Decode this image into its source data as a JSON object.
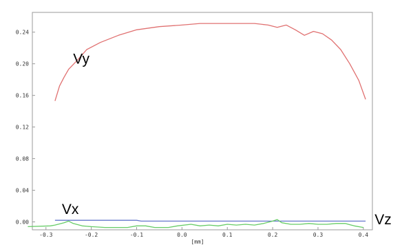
{
  "chart_data": {
    "type": "line",
    "title": "",
    "xlabel": "[mm]",
    "ylabel": "",
    "xlim": [
      -0.33,
      0.42
    ],
    "ylim": [
      -0.01,
      0.265
    ],
    "x_ticks": [
      -0.3,
      -0.2,
      -0.1,
      0.0,
      0.1,
      0.2,
      0.3,
      0.4
    ],
    "x_tick_labels": [
      "-0.3",
      "-0.2",
      "-0.1",
      "0.0",
      "0.1",
      "0.2",
      "0.3",
      "0.4"
    ],
    "y_ticks": [
      0.0,
      0.04,
      0.08,
      0.12,
      0.16,
      0.2,
      0.24
    ],
    "y_tick_labels": [
      "0.00",
      "0.04",
      "0.08",
      "0.12",
      "0.16",
      "0.20",
      "0.24"
    ],
    "grid": false,
    "legend": "none",
    "series": [
      {
        "name": "Vy",
        "color": "#e07070",
        "label_at": [
          -0.24,
          0.2
        ],
        "points": [
          [
            -0.28,
            0.153
          ],
          [
            -0.27,
            0.172
          ],
          [
            -0.26,
            0.183
          ],
          [
            -0.25,
            0.193
          ],
          [
            -0.23,
            0.205
          ],
          [
            -0.21,
            0.218
          ],
          [
            -0.18,
            0.227
          ],
          [
            -0.14,
            0.236
          ],
          [
            -0.1,
            0.243
          ],
          [
            -0.05,
            0.247
          ],
          [
            0.0,
            0.249
          ],
          [
            0.04,
            0.251
          ],
          [
            0.1,
            0.251
          ],
          [
            0.16,
            0.251
          ],
          [
            0.19,
            0.249
          ],
          [
            0.21,
            0.246
          ],
          [
            0.23,
            0.249
          ],
          [
            0.25,
            0.243
          ],
          [
            0.27,
            0.236
          ],
          [
            0.29,
            0.241
          ],
          [
            0.31,
            0.238
          ],
          [
            0.33,
            0.23
          ],
          [
            0.35,
            0.218
          ],
          [
            0.37,
            0.2
          ],
          [
            0.39,
            0.179
          ],
          [
            0.405,
            0.155
          ]
        ]
      },
      {
        "name": "Vx",
        "color": "#6677cc",
        "label_at": [
          -0.265,
          0.01
        ],
        "points": [
          [
            -0.28,
            0.002
          ],
          [
            -0.1,
            0.002
          ],
          [
            -0.09,
            0.001
          ],
          [
            0.1,
            0.001
          ],
          [
            0.405,
            0.001
          ]
        ]
      },
      {
        "name": "Vz",
        "color": "#66cc66",
        "label_at": [
          0.425,
          -0.003
        ],
        "points": [
          [
            -0.34,
            -0.006
          ],
          [
            -0.29,
            -0.005
          ],
          [
            -0.28,
            -0.004
          ],
          [
            -0.26,
            -0.001
          ],
          [
            -0.25,
            0.001
          ],
          [
            -0.24,
            -0.002
          ],
          [
            -0.22,
            -0.005
          ],
          [
            -0.2,
            -0.006
          ],
          [
            -0.17,
            -0.007
          ],
          [
            -0.12,
            -0.007
          ],
          [
            -0.1,
            -0.005
          ],
          [
            -0.08,
            -0.005
          ],
          [
            -0.06,
            -0.007
          ],
          [
            -0.03,
            -0.007
          ],
          [
            -0.01,
            -0.005
          ],
          [
            0.02,
            -0.003
          ],
          [
            0.04,
            -0.005
          ],
          [
            0.06,
            -0.004
          ],
          [
            0.08,
            -0.005
          ],
          [
            0.1,
            -0.003
          ],
          [
            0.12,
            -0.004
          ],
          [
            0.14,
            -0.003
          ],
          [
            0.16,
            -0.004
          ],
          [
            0.18,
            -0.002
          ],
          [
            0.2,
            0.001
          ],
          [
            0.21,
            0.003
          ],
          [
            0.22,
            -0.001
          ],
          [
            0.24,
            -0.003
          ],
          [
            0.26,
            -0.003
          ],
          [
            0.28,
            -0.002
          ],
          [
            0.3,
            -0.003
          ],
          [
            0.32,
            -0.003
          ],
          [
            0.34,
            -0.002
          ],
          [
            0.36,
            -0.002
          ],
          [
            0.38,
            -0.005
          ],
          [
            0.4,
            -0.007
          ]
        ]
      }
    ]
  }
}
